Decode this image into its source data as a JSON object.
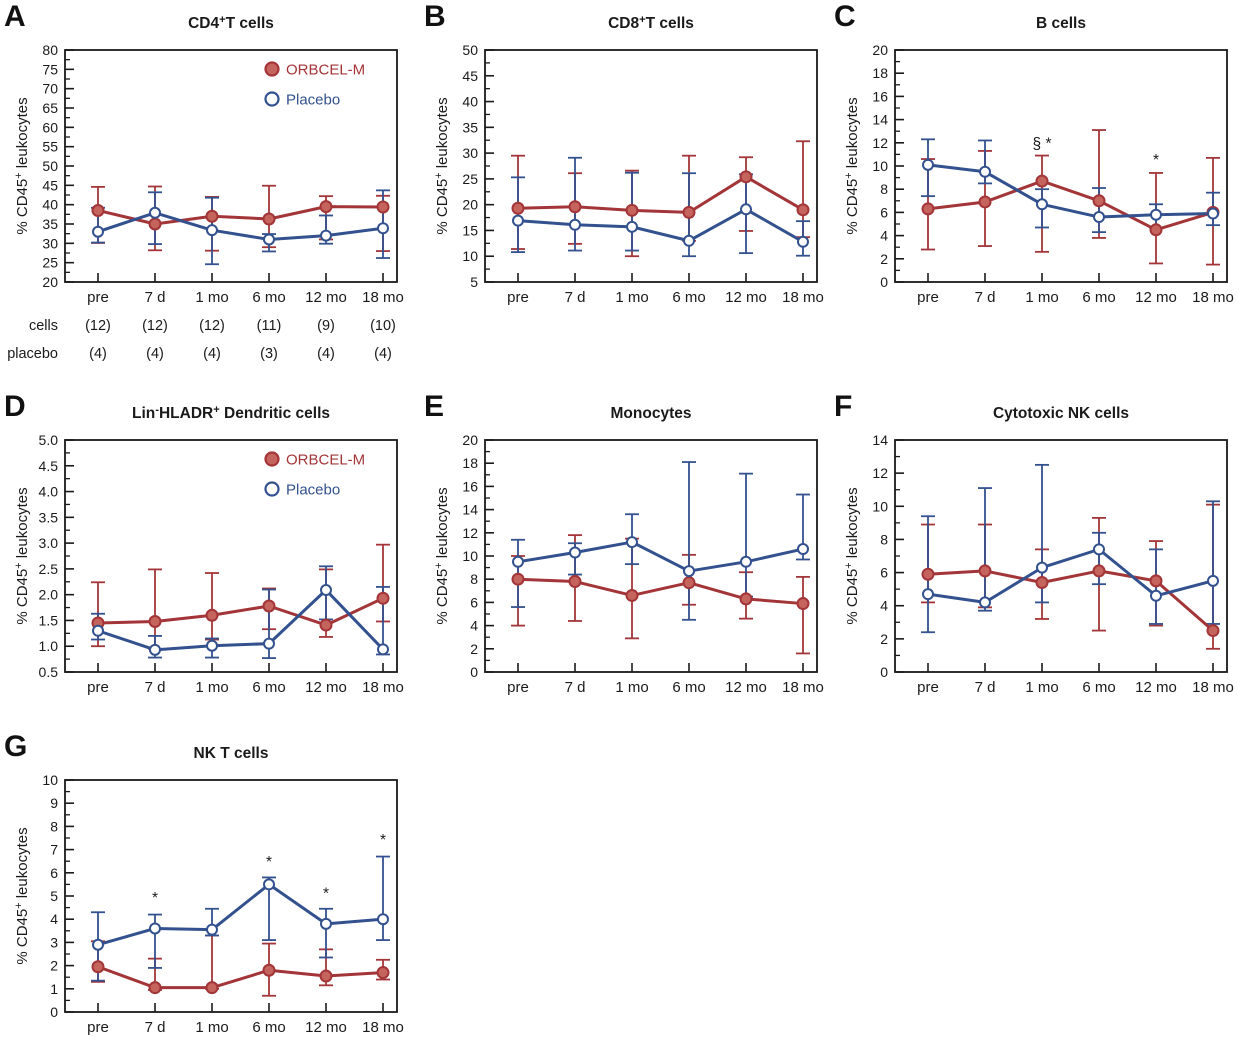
{
  "colors": {
    "orbcel_line": "#A33538",
    "orbcel_fill": "#C4645C",
    "placebo_line": "#33518E",
    "placebo_fill": "#FFFFFF",
    "axis": "#1A1A1A",
    "text": "#1A1A1A"
  },
  "legend": {
    "items": [
      {
        "label": "ORBCEL-M",
        "series": "orbcel",
        "text_color": "#A33538"
      },
      {
        "label": "Placebo",
        "series": "placebo",
        "text_color": "#33518E"
      }
    ]
  },
  "ylabel": "% CD45+ leukocytes",
  "ylabel_parts": [
    {
      "t": "% CD45"
    },
    {
      "t": "+",
      "sup": true
    },
    {
      "t": " leukocytes"
    }
  ],
  "chart_data": [
    {
      "letter": "A",
      "type": "line",
      "title": "CD4+T cells",
      "title_parts": [
        {
          "t": "CD4"
        },
        {
          "t": "+",
          "sup": true
        },
        {
          "t": "T cells"
        }
      ],
      "ylim": [
        20,
        80
      ],
      "ystep": 5,
      "ydec": 0,
      "grid": false,
      "categories": [
        "pre",
        "7 d",
        "1 mo",
        "6 mo",
        "12 mo",
        "18 mo"
      ],
      "series": [
        {
          "name": "ORBCEL-M",
          "values": [
            38.5,
            35.0,
            37.0,
            36.3,
            39.5,
            39.4
          ],
          "err_lo": [
            30.1,
            28.2,
            28.1,
            29.0,
            31.0,
            28.0
          ],
          "err_hi": [
            44.6,
            44.7,
            42.0,
            44.9,
            42.2,
            42.3
          ]
        },
        {
          "name": "Placebo",
          "values": [
            33.0,
            37.9,
            33.4,
            31.0,
            32.0,
            33.9
          ],
          "err_lo": [
            30.2,
            29.8,
            24.6,
            27.9,
            29.9,
            26.2
          ],
          "err_hi": [
            39.2,
            43.2,
            41.8,
            32.4,
            37.2,
            43.7
          ]
        }
      ],
      "legend": true,
      "counts": {
        "rows": [
          {
            "label": "cells",
            "values": [
              "(12)",
              "(12)",
              "(12)",
              "(11)",
              "(9)",
              "(10)"
            ]
          },
          {
            "label": "placebo",
            "values": [
              "(4)",
              "(4)",
              "(4)",
              "(3)",
              "(4)",
              "(4)"
            ]
          }
        ]
      },
      "annotations": []
    },
    {
      "letter": "B",
      "type": "line",
      "title": "CD8+T cells",
      "title_parts": [
        {
          "t": "CD8"
        },
        {
          "t": "+",
          "sup": true
        },
        {
          "t": "T cells"
        }
      ],
      "ylim": [
        5,
        50
      ],
      "ystep": 5,
      "ydec": 0,
      "grid": false,
      "categories": [
        "pre",
        "7 d",
        "1 mo",
        "6 mo",
        "12 mo",
        "18 mo"
      ],
      "series": [
        {
          "name": "ORBCEL-M",
          "values": [
            19.3,
            19.6,
            18.9,
            18.5,
            25.4,
            19.0
          ],
          "err_lo": [
            11.4,
            12.4,
            10.0,
            13.0,
            14.9,
            13.7
          ],
          "err_hi": [
            29.5,
            26.1,
            26.6,
            29.5,
            29.2,
            32.3
          ]
        },
        {
          "name": "Placebo",
          "values": [
            16.9,
            16.1,
            15.7,
            13.0,
            19.1,
            12.8
          ],
          "err_lo": [
            10.8,
            11.1,
            11.1,
            10.0,
            10.6,
            10.1
          ],
          "err_hi": [
            25.3,
            29.1,
            26.2,
            26.1,
            25.9,
            16.8
          ]
        }
      ],
      "legend": false,
      "counts": null,
      "annotations": []
    },
    {
      "letter": "C",
      "type": "line",
      "title": "B cells",
      "title_parts": [
        {
          "t": "B cells"
        }
      ],
      "ylim": [
        0,
        20
      ],
      "ystep": 2,
      "ydec": 0,
      "grid": false,
      "categories": [
        "pre",
        "7 d",
        "1 mo",
        "6 mo",
        "12 mo",
        "18 mo"
      ],
      "series": [
        {
          "name": "ORBCEL-M",
          "values": [
            6.3,
            6.9,
            8.7,
            7.0,
            4.5,
            6.0
          ],
          "err_lo": [
            2.8,
            3.1,
            2.6,
            3.8,
            1.6,
            1.5
          ],
          "err_hi": [
            10.6,
            11.3,
            10.9,
            13.1,
            9.4,
            10.7
          ]
        },
        {
          "name": "Placebo",
          "values": [
            10.1,
            9.5,
            6.7,
            5.6,
            5.8,
            5.9
          ],
          "err_lo": [
            7.4,
            8.5,
            4.7,
            4.3,
            4.7,
            4.9
          ],
          "err_hi": [
            12.3,
            12.2,
            8.0,
            8.1,
            6.7,
            7.7
          ]
        }
      ],
      "legend": false,
      "counts": null,
      "annotations": [
        {
          "ci": 2,
          "y": 11.5,
          "text": "§ *"
        },
        {
          "ci": 4,
          "y": 10.1,
          "text": "*"
        }
      ]
    },
    {
      "letter": "D",
      "type": "line",
      "title": "Lin-HLADR+ Dendritic cells",
      "title_parts": [
        {
          "t": "Lin"
        },
        {
          "t": "-",
          "sup": true
        },
        {
          "t": "HLADR"
        },
        {
          "t": "+",
          "sup": true
        },
        {
          "t": " Dendritic cells"
        }
      ],
      "ylim": [
        0.5,
        5.0
      ],
      "ystep": 0.5,
      "ydec": 1,
      "grid": false,
      "categories": [
        "pre",
        "7 d",
        "1 mo",
        "6 mo",
        "12 mo",
        "18 mo"
      ],
      "series": [
        {
          "name": "ORBCEL-M",
          "values": [
            1.45,
            1.48,
            1.6,
            1.78,
            1.41,
            1.93
          ],
          "err_lo": [
            1.0,
            0.95,
            1.13,
            1.33,
            1.18,
            1.48
          ],
          "err_hi": [
            2.24,
            2.49,
            2.42,
            2.12,
            2.49,
            2.97
          ]
        },
        {
          "name": "Placebo",
          "values": [
            1.3,
            0.93,
            1.01,
            1.05,
            2.09,
            0.94
          ],
          "err_lo": [
            1.13,
            0.78,
            0.78,
            0.77,
            1.52,
            0.84
          ],
          "err_hi": [
            1.63,
            1.2,
            1.15,
            2.1,
            2.55,
            2.15
          ]
        }
      ],
      "legend": true,
      "counts": null,
      "annotations": []
    },
    {
      "letter": "E",
      "type": "line",
      "title": "Monocytes",
      "title_parts": [
        {
          "t": "Monocytes"
        }
      ],
      "ylim": [
        0,
        20
      ],
      "ystep": 2,
      "ydec": 0,
      "grid": false,
      "categories": [
        "pre",
        "7 d",
        "1 mo",
        "6 mo",
        "12 mo",
        "18 mo"
      ],
      "series": [
        {
          "name": "ORBCEL-M",
          "values": [
            8.0,
            7.8,
            6.6,
            7.7,
            6.3,
            5.9
          ],
          "err_lo": [
            4.0,
            4.4,
            2.9,
            5.8,
            4.6,
            1.6
          ],
          "err_hi": [
            10.0,
            11.8,
            11.5,
            10.1,
            8.6,
            8.2
          ]
        },
        {
          "name": "Placebo",
          "values": [
            9.5,
            10.3,
            11.2,
            8.7,
            9.5,
            10.6
          ],
          "err_lo": [
            5.6,
            8.4,
            9.3,
            4.5,
            6.5,
            9.7
          ],
          "err_hi": [
            11.4,
            11.1,
            13.6,
            18.1,
            17.1,
            15.3
          ]
        }
      ],
      "legend": false,
      "counts": null,
      "annotations": []
    },
    {
      "letter": "F",
      "type": "line",
      "title": "Cytotoxic NK cells",
      "title_parts": [
        {
          "t": "Cytotoxic NK cells"
        }
      ],
      "ylim": [
        0,
        14
      ],
      "ystep": 2,
      "ydec": 0,
      "grid": false,
      "categories": [
        "pre",
        "7 d",
        "1 mo",
        "6 mo",
        "12 mo",
        "18 mo"
      ],
      "series": [
        {
          "name": "ORBCEL-M",
          "values": [
            5.9,
            6.1,
            5.4,
            6.1,
            5.5,
            2.5
          ],
          "err_lo": [
            4.2,
            3.9,
            3.2,
            2.5,
            2.8,
            1.4
          ],
          "err_hi": [
            8.9,
            8.9,
            7.4,
            9.3,
            7.9,
            10.1
          ]
        },
        {
          "name": "Placebo",
          "values": [
            4.7,
            4.2,
            6.3,
            7.4,
            4.6,
            5.5
          ],
          "err_lo": [
            2.4,
            3.7,
            4.2,
            5.3,
            2.9,
            2.9
          ],
          "err_hi": [
            9.4,
            11.1,
            12.5,
            8.4,
            7.4,
            10.3
          ]
        }
      ],
      "legend": false,
      "counts": null,
      "annotations": []
    },
    {
      "letter": "G",
      "type": "line",
      "title": "NK T cells",
      "title_parts": [
        {
          "t": "NK T cells"
        }
      ],
      "ylim": [
        0,
        10
      ],
      "ystep": 1,
      "ydec": 0,
      "grid": false,
      "categories": [
        "pre",
        "7 d",
        "1 mo",
        "6 mo",
        "12 mo",
        "18 mo"
      ],
      "series": [
        {
          "name": "ORBCEL-M",
          "values": [
            1.95,
            1.05,
            1.05,
            1.8,
            1.55,
            1.7
          ],
          "err_lo": [
            1.3,
            0.95,
            1.0,
            0.7,
            1.15,
            1.4
          ],
          "err_hi": [
            3.05,
            2.3,
            3.3,
            2.95,
            2.7,
            2.25
          ]
        },
        {
          "name": "Placebo",
          "values": [
            2.9,
            3.6,
            3.55,
            5.5,
            3.8,
            4.0
          ],
          "err_lo": [
            1.35,
            1.9,
            3.3,
            3.1,
            2.35,
            3.1
          ],
          "err_hi": [
            4.3,
            4.2,
            4.45,
            5.8,
            4.45,
            6.7
          ]
        }
      ],
      "legend": false,
      "counts": null,
      "annotations": [
        {
          "ci": 1,
          "y": 4.7,
          "text": "*"
        },
        {
          "ci": 3,
          "y": 6.25,
          "text": "*"
        },
        {
          "ci": 4,
          "y": 4.9,
          "text": "*"
        },
        {
          "ci": 5,
          "y": 7.2,
          "text": "*"
        }
      ]
    }
  ]
}
